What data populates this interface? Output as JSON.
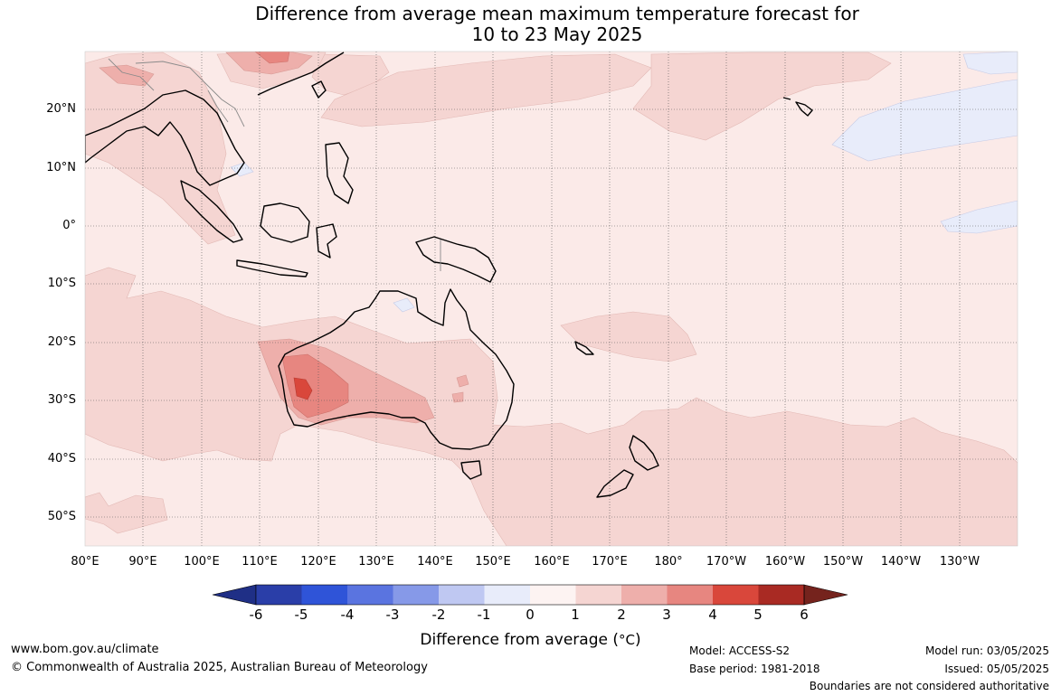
{
  "title": {
    "line1": "Difference from average mean maximum temperature forecast for",
    "line2": "10 to 23 May 2025"
  },
  "map": {
    "lat_labels": [
      "20°N",
      "10°N",
      "0°",
      "10°S",
      "20°S",
      "30°S",
      "40°S",
      "50°S"
    ],
    "lon_labels": [
      "80°E",
      "90°E",
      "100°E",
      "110°E",
      "120°E",
      "130°E",
      "140°E",
      "150°E",
      "160°E",
      "170°E",
      "180°",
      "170°W",
      "160°W",
      "150°W",
      "140°W",
      "130°W"
    ],
    "colors": {
      "ocean_base": "#fbeae8",
      "band_1_2": "#f5d5d2",
      "band_2_3": "#eeafab",
      "band_3_4": "#e78680",
      "band_4_5": "#d9473b",
      "band_neg": "#e8ecfa",
      "coast": "#000000",
      "borders": "#8a8a8a"
    }
  },
  "colorbar": {
    "ticks": [
      "-6",
      "-5",
      "-4",
      "-3",
      "-2",
      "-1",
      "0",
      "1",
      "2",
      "3",
      "4",
      "5",
      "6"
    ],
    "colors": [
      "#1f2f86",
      "#2a3ea8",
      "#2f54d8",
      "#5a74e0",
      "#8699e8",
      "#bfc8f2",
      "#e8ecfa",
      "#fdf3f2",
      "#f5d5d2",
      "#eeafab",
      "#e78680",
      "#d9473b",
      "#a92a23",
      "#75231d"
    ],
    "title": "Difference from average (",
    "unit": "°C",
    "title_close": ")"
  },
  "footer": {
    "website": "www.bom.gov.au/climate",
    "copyright": "© Commonwealth of Australia 2025, Australian Bureau of Meteorology",
    "model": "Model: ACCESS-S2",
    "base_period": "Base period: 1981-2018",
    "model_run": "Model run: 03/05/2025",
    "issued": "Issued: 05/05/2025",
    "disclaimer": "Boundaries are not considered authoritative"
  }
}
